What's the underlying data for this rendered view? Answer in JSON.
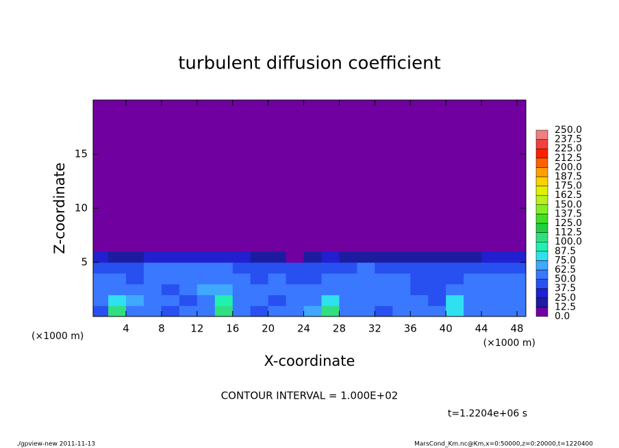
{
  "chart_data": {
    "type": "heatmap",
    "title": "turbulent diffusion coefficient",
    "x_label": "X-coordinate",
    "y_label": "Z-coordinate",
    "x_unit": "(×1000 m)",
    "y_unit": "(×1000 m)",
    "contour_note": "CONTOUR INTERVAL = 1.000E+02",
    "time_note": "t=1.2204e+06 s",
    "footer_left": "./gpview-new  2011-11-13",
    "footer_right": "MarsCond_Km.nc@Km,x=0:50000,z=0:20000,t=1220400",
    "xlim": [
      0.3,
      49
    ],
    "ylim": [
      0,
      20
    ],
    "xticks": [
      4,
      8,
      12,
      16,
      20,
      24,
      28,
      32,
      36,
      40,
      44,
      48
    ],
    "yticks": [
      5,
      10,
      15
    ],
    "x_edges": [
      0,
      2,
      4,
      6,
      8,
      10,
      12,
      14,
      16,
      18,
      20,
      22,
      24,
      26,
      28,
      30,
      32,
      34,
      36,
      38,
      40,
      42,
      44,
      46,
      48,
      50
    ],
    "z_edges": [
      0,
      1,
      2,
      3,
      4,
      5,
      6,
      20
    ],
    "values": [
      [
        45,
        100,
        60,
        50,
        45,
        50,
        60,
        110,
        55,
        45,
        50,
        55,
        70,
        100,
        55,
        50,
        45,
        55,
        60,
        50,
        85,
        55,
        50,
        60,
        50
      ],
      [
        50,
        85,
        65,
        55,
        50,
        45,
        55,
        90,
        60,
        50,
        45,
        50,
        60,
        75,
        60,
        55,
        50,
        60,
        55,
        45,
        75,
        55,
        50,
        55,
        50
      ],
      [
        55,
        60,
        55,
        60,
        45,
        55,
        65,
        70,
        55,
        55,
        50,
        50,
        55,
        60,
        55,
        55,
        60,
        55,
        45,
        45,
        60,
        50,
        55,
        50,
        50
      ],
      [
        50,
        50,
        45,
        55,
        55,
        50,
        60,
        55,
        50,
        45,
        55,
        45,
        45,
        50,
        55,
        55,
        50,
        50,
        45,
        40,
        45,
        50,
        50,
        55,
        50
      ],
      [
        45,
        40,
        45,
        50,
        50,
        55,
        50,
        50,
        45,
        45,
        40,
        45,
        45,
        40,
        45,
        50,
        45,
        45,
        45,
        40,
        45,
        40,
        45,
        45,
        45
      ],
      [
        30,
        20,
        15,
        25,
        30,
        35,
        30,
        30,
        25,
        20,
        15,
        10,
        20,
        25,
        20,
        20,
        20,
        15,
        15,
        20,
        20,
        20,
        25,
        25,
        25
      ],
      [
        0,
        0,
        0,
        0,
        0,
        0,
        0,
        0,
        0,
        0,
        0,
        0,
        0,
        0,
        0,
        0,
        0,
        0,
        0,
        0,
        0,
        0,
        0,
        0,
        0
      ]
    ],
    "colorbar": {
      "ticks": [
        {
          "value": 0,
          "label": "0.0"
        },
        {
          "value": 12.5,
          "label": "12.5"
        },
        {
          "value": 25,
          "label": "25.0"
        },
        {
          "value": 37.5,
          "label": "37.5"
        },
        {
          "value": 50,
          "label": "50.0"
        },
        {
          "value": 62.5,
          "label": "62.5"
        },
        {
          "value": 75,
          "label": "75.0"
        },
        {
          "value": 87.5,
          "label": "87.5"
        },
        {
          "value": 100,
          "label": "100.0"
        },
        {
          "value": 112.5,
          "label": "112.5"
        },
        {
          "value": 125,
          "label": "125.0"
        },
        {
          "value": 137.5,
          "label": "137.5"
        },
        {
          "value": 150,
          "label": "150.0"
        },
        {
          "value": 162.5,
          "label": "162.5"
        },
        {
          "value": 175,
          "label": "175.0"
        },
        {
          "value": 187.5,
          "label": "187.5"
        },
        {
          "value": 200,
          "label": "200.0"
        },
        {
          "value": 212.5,
          "label": "212.5"
        },
        {
          "value": 225,
          "label": "225.0"
        },
        {
          "value": 237.5,
          "label": "237.5"
        },
        {
          "value": 250,
          "label": "250.0"
        }
      ],
      "colors": [
        "#7000a0",
        "#1c1ca0",
        "#2020d0",
        "#2850f0",
        "#3a78ff",
        "#40a8ff",
        "#30e0f0",
        "#20f0b0",
        "#30e080",
        "#20d040",
        "#40e020",
        "#80f020",
        "#b8f020",
        "#e0f000",
        "#ffd000",
        "#ffa000",
        "#ff6000",
        "#ff2000",
        "#f04040",
        "#f08080"
      ]
    }
  }
}
